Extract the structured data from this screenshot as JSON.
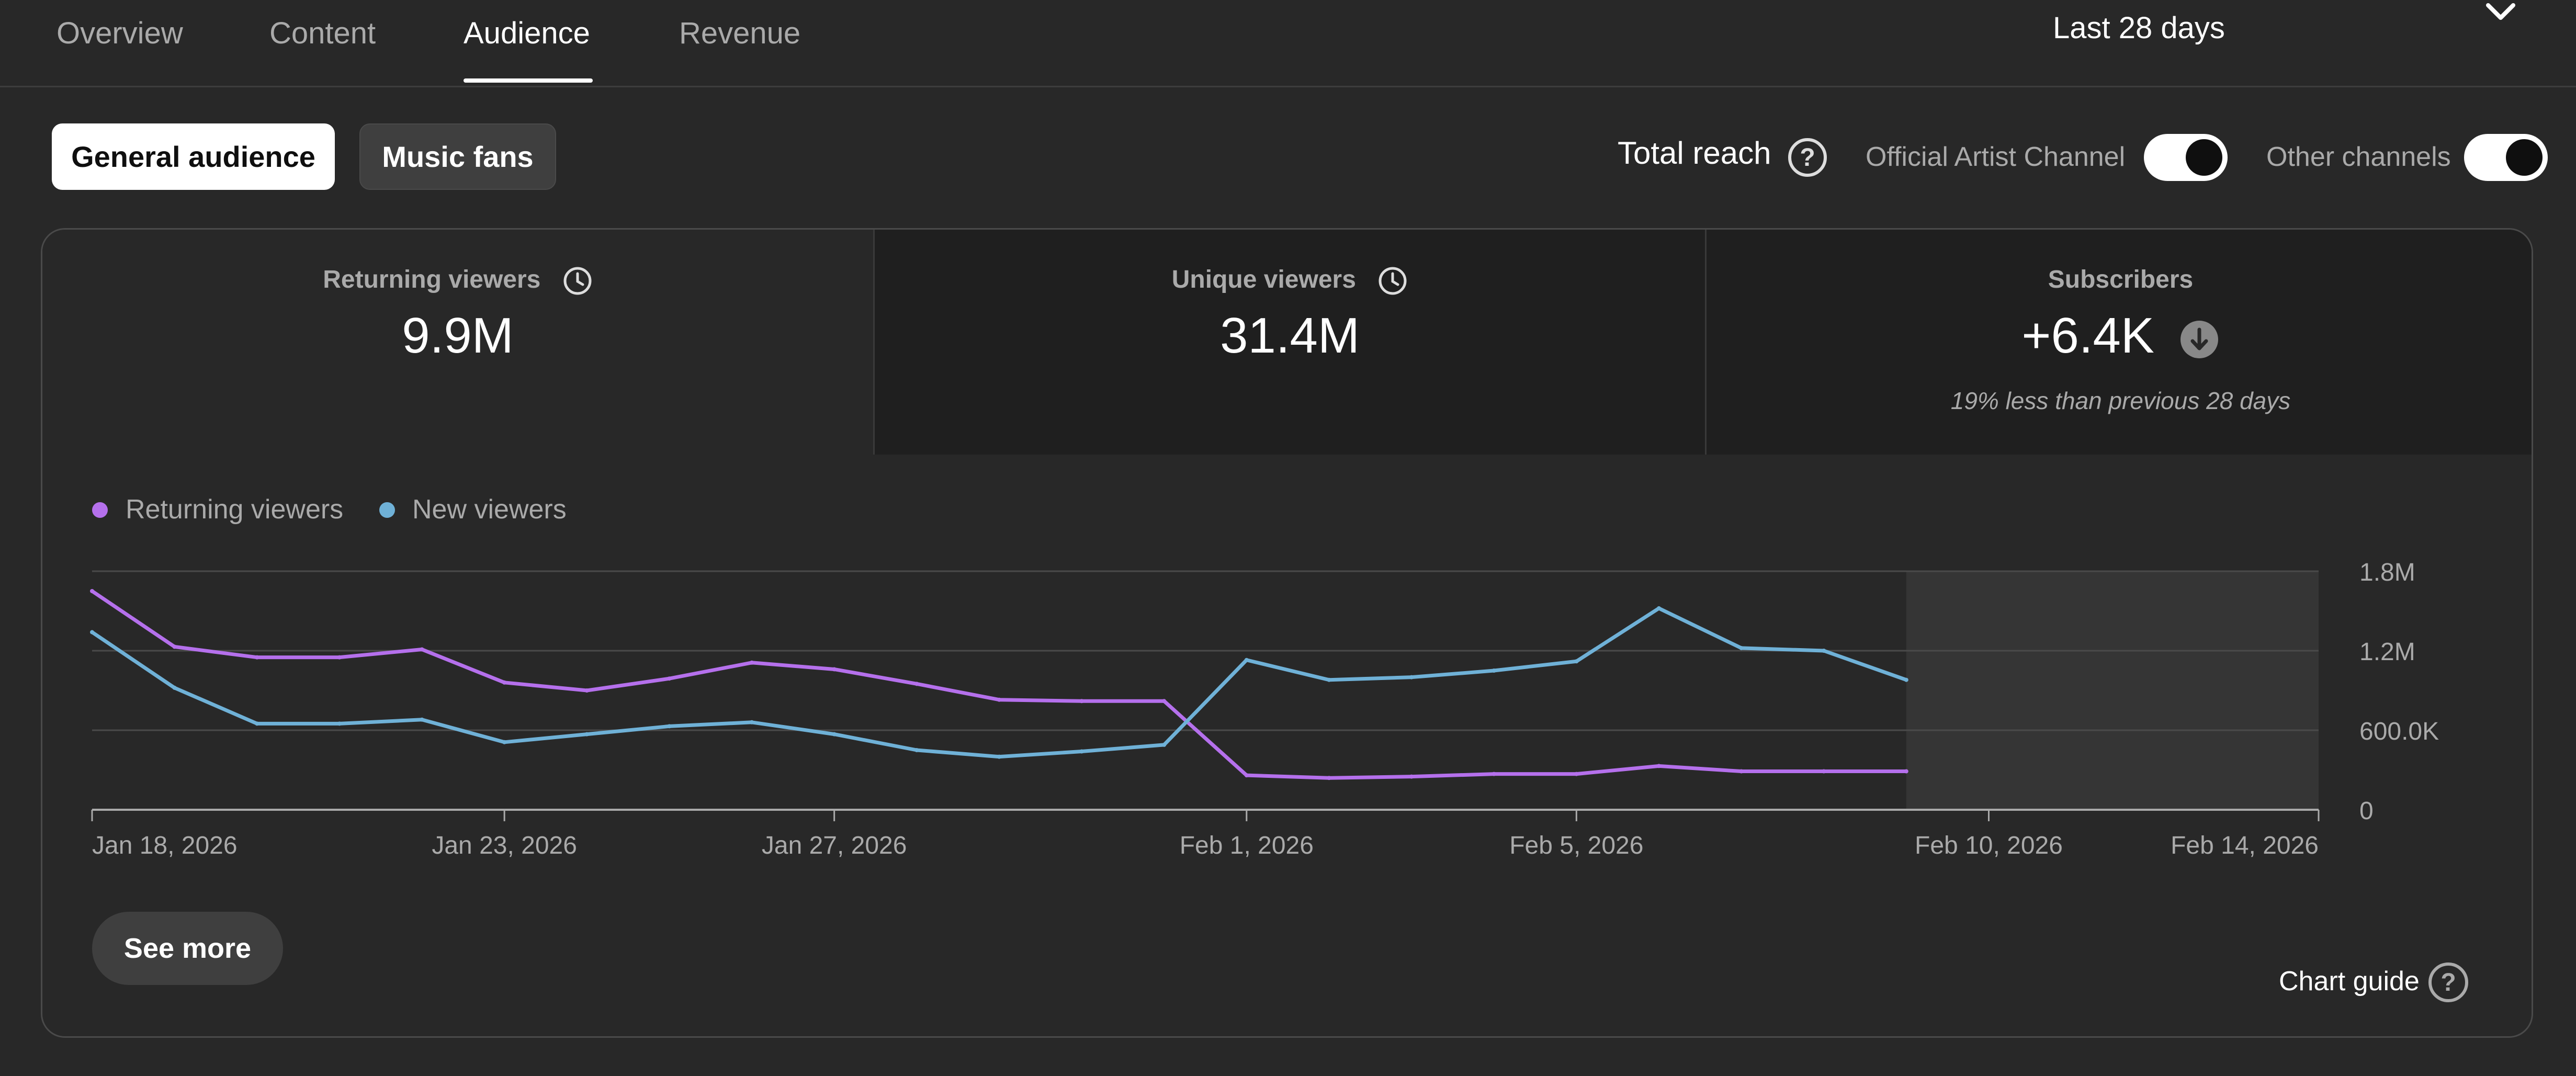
{
  "tabs": [
    {
      "label": "Overview"
    },
    {
      "label": "Content"
    },
    {
      "label": "Audience"
    },
    {
      "label": "Revenue"
    }
  ],
  "active_tab": "Audience",
  "date_range": {
    "label": "Last 28 days"
  },
  "audience_filters": {
    "general": "General audience",
    "music": "Music fans",
    "selected": "General audience"
  },
  "reach": {
    "label": "Total reach",
    "official_artist_channel": {
      "label": "Official Artist Channel",
      "on": true
    },
    "other_channels": {
      "label": "Other channels",
      "on": true
    }
  },
  "metrics": [
    {
      "label": "Returning viewers",
      "value": "9.9M"
    },
    {
      "label": "Unique viewers",
      "value": "31.4M"
    },
    {
      "label": "Subscribers",
      "value": "+6.4K",
      "note": "19% less than previous 28 days"
    }
  ],
  "legend": [
    {
      "name": "Returning viewers",
      "color": "#b570ec"
    },
    {
      "name": "New viewers",
      "color": "#6fb1d7"
    }
  ],
  "chart_data": {
    "type": "line",
    "x": [
      "Jan 18, 2026",
      "Jan 19, 2026",
      "Jan 20, 2026",
      "Jan 21, 2026",
      "Jan 22, 2026",
      "Jan 23, 2026",
      "Jan 24, 2026",
      "Jan 25, 2026",
      "Jan 26, 2026",
      "Jan 27, 2026",
      "Jan 28, 2026",
      "Jan 29, 2026",
      "Jan 30, 2026",
      "Jan 31, 2026",
      "Feb 1, 2026",
      "Feb 2, 2026",
      "Feb 3, 2026",
      "Feb 4, 2026",
      "Feb 5, 2026",
      "Feb 6, 2026",
      "Feb 7, 2026",
      "Feb 8, 2026",
      "Feb 9, 2026"
    ],
    "x_tick_labels": [
      "Jan 18, 2026",
      "Jan 23, 2026",
      "Jan 27, 2026",
      "Feb 1, 2026",
      "Feb 5, 2026",
      "Feb 10, 2026",
      "Feb 14, 2026"
    ],
    "x_range": [
      "Jan 18, 2026",
      "Feb 14, 2026"
    ],
    "series": [
      {
        "name": "Returning viewers",
        "color": "#b570ec",
        "values": [
          1650000,
          1230000,
          1150000,
          1150000,
          1210000,
          960000,
          900000,
          990000,
          1110000,
          1060000,
          950000,
          830000,
          820000,
          820000,
          260000,
          240000,
          250000,
          270000,
          270000,
          330000,
          290000,
          290000,
          290000
        ]
      },
      {
        "name": "New viewers",
        "color": "#6fb1d7",
        "values": [
          1340000,
          920000,
          650000,
          650000,
          680000,
          510000,
          570000,
          630000,
          660000,
          570000,
          450000,
          400000,
          440000,
          490000,
          1130000,
          980000,
          1000000,
          1050000,
          1120000,
          1520000,
          1220000,
          1200000,
          980000
        ]
      }
    ],
    "y_tick_labels": [
      "0",
      "600.0K",
      "1.2M",
      "1.8M"
    ],
    "ylim": [
      0,
      1800000
    ],
    "projected_region": [
      "Feb 9, 2026",
      "Feb 14, 2026"
    ],
    "grid": true
  },
  "actions": {
    "see_more": "See more",
    "chart_guide": "Chart guide"
  }
}
